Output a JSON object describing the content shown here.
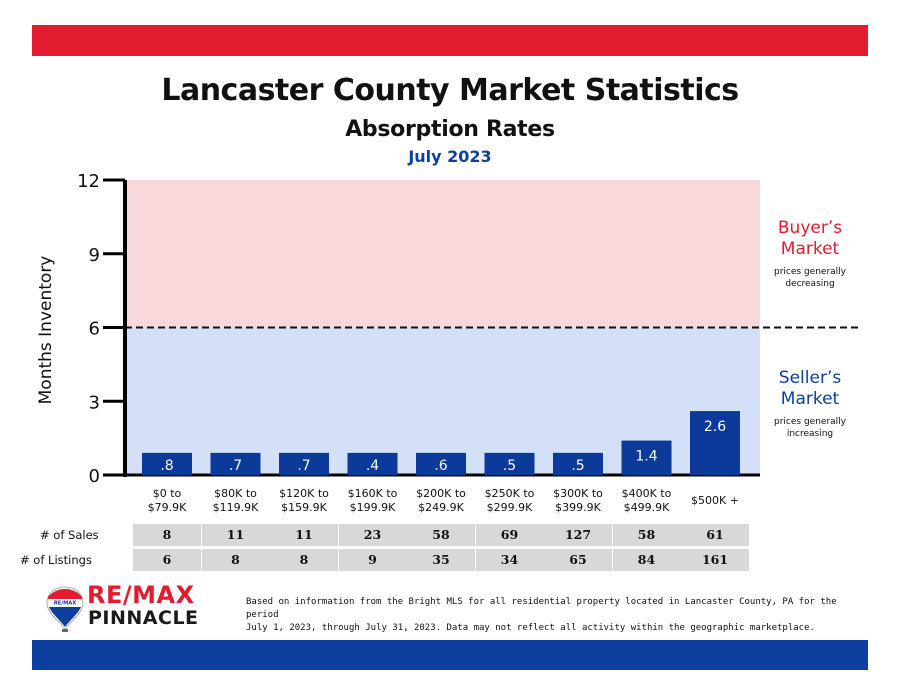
{
  "colors": {
    "brand_red": "#e31b2f",
    "brand_blue": "#0d3f9e",
    "buyers_zone": "#f9d8dc",
    "sellers_zone": "#d3e0f7",
    "bar": "#0b3a9a"
  },
  "header": {
    "title": "Lancaster County Market Statistics",
    "subtitle": "Absorption Rates",
    "date": "July 2023"
  },
  "zones": {
    "buyers": {
      "title_line1": "Buyer’s",
      "title_line2": "Market",
      "note_line1": "prices generally",
      "note_line2": "decreasing"
    },
    "sellers": {
      "title_line1": "Seller’s",
      "title_line2": "Market",
      "note_line1": "prices generally",
      "note_line2": "increasing"
    }
  },
  "chart_data": {
    "type": "bar",
    "title": "Absorption Rates",
    "ylabel": "Months Inventory",
    "xlabel": "",
    "ylim": [
      0,
      12
    ],
    "yticks": [
      0,
      3,
      6,
      9,
      12
    ],
    "threshold": 6,
    "grid": false,
    "categories": [
      [
        "$0 to",
        "$79.9K"
      ],
      [
        "$80K to",
        "$119.9K"
      ],
      [
        "$120K to",
        "$159.9K"
      ],
      [
        "$160K to",
        "$199.9K"
      ],
      [
        "$200K to",
        "$249.9K"
      ],
      [
        "$250K to",
        "$299.9K"
      ],
      [
        "$300K to",
        "$399.9K"
      ],
      [
        "$400K to",
        "$499.9K"
      ],
      [
        "$500K +"
      ]
    ],
    "values": [
      0.8,
      0.7,
      0.7,
      0.4,
      0.6,
      0.5,
      0.5,
      1.4,
      2.6
    ],
    "value_labels": [
      ".8",
      ".7",
      ".7",
      ".4",
      ".6",
      ".5",
      ".5",
      "1.4",
      "2.6"
    ],
    "bar_display_min": 0.9
  },
  "table": {
    "rows": [
      {
        "label": "# of Sales",
        "values": [
          "8",
          "11",
          "11",
          "23",
          "58",
          "69",
          "127",
          "58",
          "61"
        ]
      },
      {
        "label": "# of Listings",
        "values": [
          "6",
          "8",
          "8",
          "9",
          "35",
          "34",
          "65",
          "84",
          "161"
        ]
      }
    ]
  },
  "logo": {
    "brand": "RE/MAX",
    "office": "PINNACLE",
    "balloon_text": "RE/MAX"
  },
  "footnote": {
    "line1": "Based on information from the Bright MLS for all residential property located in Lancaster County, PA for the period",
    "line2": "July 1, 2023, through July 31, 2023.  Data may not reflect all activity within the geographic marketplace."
  }
}
